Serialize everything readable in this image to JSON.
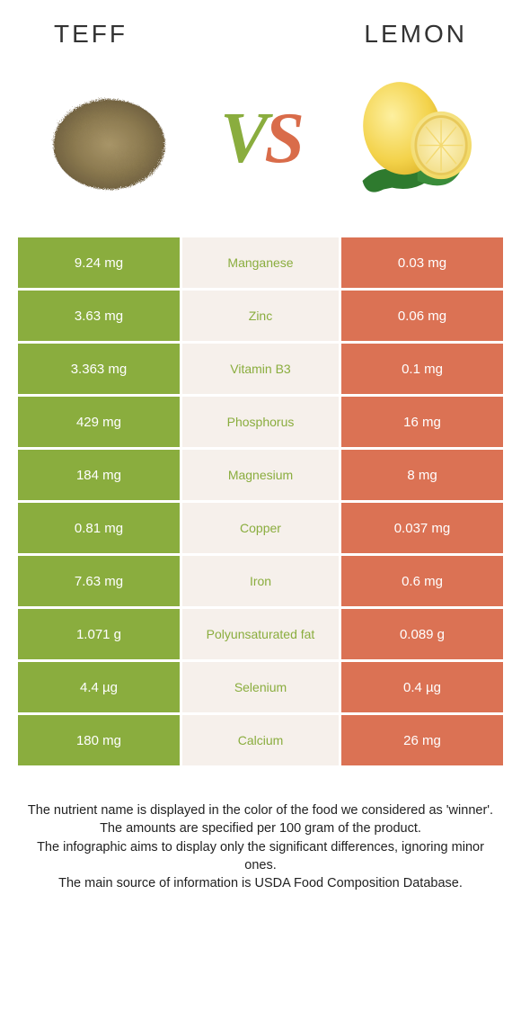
{
  "header": {
    "left": "Teff",
    "right": "Lemon"
  },
  "colors": {
    "green": "#8aad3e",
    "orange": "#db7254",
    "midbg": "#f6f0eb",
    "text": "#222222"
  },
  "rows": [
    {
      "left": "9.24 mg",
      "mid": "Manganese",
      "right": "0.03 mg",
      "winner": "green"
    },
    {
      "left": "3.63 mg",
      "mid": "Zinc",
      "right": "0.06 mg",
      "winner": "green"
    },
    {
      "left": "3.363 mg",
      "mid": "Vitamin B3",
      "right": "0.1 mg",
      "winner": "green"
    },
    {
      "left": "429 mg",
      "mid": "Phosphorus",
      "right": "16 mg",
      "winner": "green"
    },
    {
      "left": "184 mg",
      "mid": "Magnesium",
      "right": "8 mg",
      "winner": "green"
    },
    {
      "left": "0.81 mg",
      "mid": "Copper",
      "right": "0.037 mg",
      "winner": "green"
    },
    {
      "left": "7.63 mg",
      "mid": "Iron",
      "right": "0.6 mg",
      "winner": "green"
    },
    {
      "left": "1.071 g",
      "mid": "Polyunsaturated fat",
      "right": "0.089 g",
      "winner": "green"
    },
    {
      "left": "4.4 µg",
      "mid": "Selenium",
      "right": "0.4 µg",
      "winner": "green"
    },
    {
      "left": "180 mg",
      "mid": "Calcium",
      "right": "26 mg",
      "winner": "green"
    }
  ],
  "footer": {
    "l1": "The nutrient name is displayed in the color of the food we considered as 'winner'.",
    "l2": "The amounts are specified per 100 gram of the product.",
    "l3": "The infographic aims to display only the significant differences, ignoring minor ones.",
    "l4": "The main source of information is USDA Food Composition Database."
  }
}
